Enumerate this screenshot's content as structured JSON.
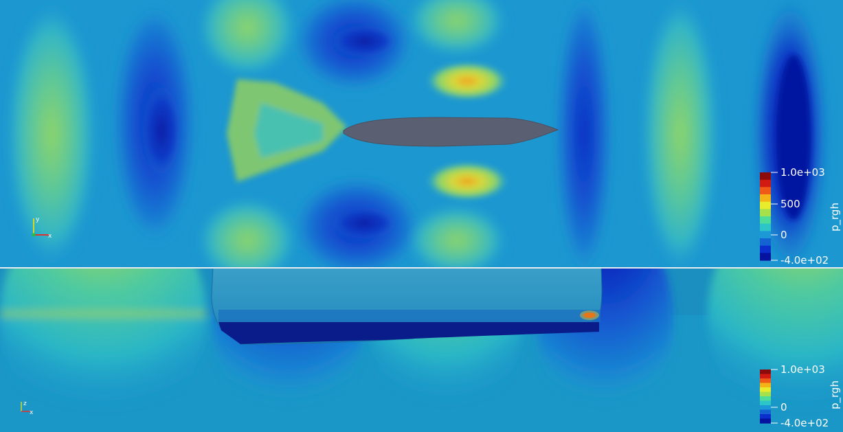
{
  "top_view": {
    "colorbar": {
      "title": "p_rgh",
      "ticks": [
        "1.0e+03",
        "500",
        "0",
        "-4.0e+02"
      ],
      "colors": [
        "#8b0a0a",
        "#d01a12",
        "#ef5a17",
        "#f4b418",
        "#e8ec2a",
        "#a6e04a",
        "#4ddc9a",
        "#2cc6c8",
        "#1d98d6",
        "#1463d2",
        "#0b2fcd",
        "#05139e"
      ]
    },
    "orientation_axes": {
      "y_label": "y",
      "x_label": "x"
    }
  },
  "bottom_view": {
    "colorbar": {
      "title": "p_rgh",
      "ticks": [
        "1.0e+03",
        "0",
        "-4.0e+02"
      ],
      "colors": [
        "#8b0a0a",
        "#d01a12",
        "#ef5a17",
        "#f4b418",
        "#e8ec2a",
        "#a6e04a",
        "#4ddc9a",
        "#2cc6c8",
        "#1d98d6",
        "#1463d2",
        "#0b2fcd",
        "#05139e"
      ]
    },
    "orientation_axes": {
      "z_label": "z",
      "x_label": "x"
    }
  }
}
